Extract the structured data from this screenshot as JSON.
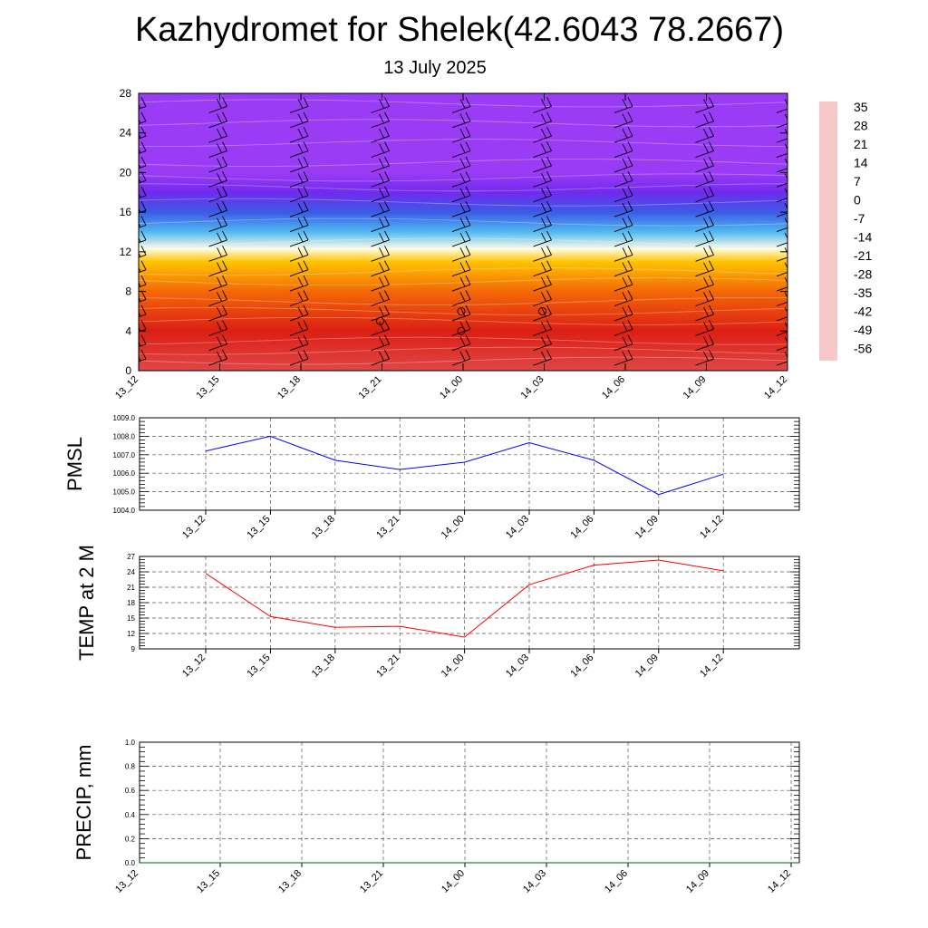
{
  "header": {
    "title": "Kazhydromet for Shelek(42.6043 78.2667)",
    "date": "13 July 2025"
  },
  "colors": {
    "pmsl_line": "#0000ff",
    "temp_line": "#ff0000",
    "precip_line": "#006400",
    "axis": "#000000",
    "grid": "#555555"
  },
  "chart_data": [
    {
      "type": "heatmap",
      "id": "upper-air-cross-section",
      "title": "",
      "xlabel": "",
      "ylabel": "",
      "ylim": [
        0,
        28
      ],
      "yticks": [
        0,
        4,
        8,
        12,
        16,
        20,
        24,
        28
      ],
      "x_tick_labels": [
        "13_12",
        "13_15",
        "13_18",
        "13_21",
        "14_00",
        "14_03",
        "14_06",
        "14_09",
        "14_12"
      ],
      "level_temperature": [
        {
          "level": 0,
          "value": 30
        },
        {
          "level": 4,
          "value": 24
        },
        {
          "level": 8,
          "value": 12
        },
        {
          "level": 11,
          "value": 0
        },
        {
          "level": 12.3,
          "value": -12
        },
        {
          "level": 14,
          "value": -26
        },
        {
          "level": 16,
          "value": -36
        },
        {
          "level": 18,
          "value": -48
        },
        {
          "level": 20,
          "value": -60
        },
        {
          "level": 22,
          "value": -56
        },
        {
          "level": 24,
          "value": -56
        },
        {
          "level": 28,
          "value": -56
        }
      ],
      "wind_barb_levels": [
        1,
        2.5,
        4,
        5.5,
        7,
        8.5,
        10,
        11.5,
        13,
        14.5,
        16,
        17.5,
        19,
        20.5,
        22,
        23.5,
        25,
        26.5
      ],
      "calm_markers": [
        {
          "time_index": 3,
          "level": 5
        },
        {
          "time_index": 4,
          "level": 6
        },
        {
          "time_index": 4,
          "level": 4
        },
        {
          "time_index": 5,
          "level": 6
        }
      ],
      "colorbar": {
        "labels": [
          "35",
          "28",
          "21",
          "14",
          "7",
          "0",
          "-7",
          "-14",
          "-21",
          "-28",
          "-35",
          "-42",
          "-49",
          "-56"
        ],
        "stops": [
          "#f6c8c8",
          "#d61414",
          "#e02814",
          "#f05a0a",
          "#ff8c00",
          "#ffc400",
          "#fff6a0",
          "#ffffff",
          "#9ee0f5",
          "#32aaf0",
          "#3c64e6",
          "#3c1edc",
          "#7a2cf2",
          "#9a3cf6"
        ]
      }
    },
    {
      "type": "line",
      "id": "pmsl",
      "title": "",
      "ylabel": "PMSL",
      "ylim": [
        1004.0,
        1009.0
      ],
      "yticks": [
        "1004.0",
        "1005.0",
        "1006.0",
        "1007.0",
        "1008.0",
        "1009.0"
      ],
      "x_tick_labels": [
        "13_12",
        "13_15",
        "13_18",
        "13_21",
        "14_00",
        "14_03",
        "14_06",
        "14_09",
        "14_12"
      ],
      "series": [
        {
          "values": [
            1007.2,
            1008.0,
            1006.7,
            1006.2,
            1006.6,
            1007.65,
            1006.7,
            1004.85,
            1005.95
          ]
        }
      ]
    },
    {
      "type": "line",
      "id": "temp",
      "title": "",
      "ylabel": "TEMP at 2 M",
      "ylim": [
        9,
        27
      ],
      "yticks": [
        "9",
        "12",
        "15",
        "18",
        "21",
        "24",
        "27"
      ],
      "x_tick_labels": [
        "13_12",
        "13_15",
        "13_18",
        "13_21",
        "14_00",
        "14_03",
        "14_06",
        "14_09",
        "14_12"
      ],
      "series": [
        {
          "values": [
            23.7,
            15.3,
            13.2,
            13.4,
            11.3,
            21.5,
            25.3,
            26.3,
            24.2
          ]
        }
      ]
    },
    {
      "type": "line",
      "id": "precip",
      "title": "",
      "ylabel": "PRECIP, mm",
      "ylim": [
        0.0,
        1.0
      ],
      "yticks": [
        "0.0",
        "0.2",
        "0.4",
        "0.6",
        "0.8",
        "1.0"
      ],
      "x_tick_labels": [
        "13_12",
        "13_15",
        "13_18",
        "13_21",
        "14_00",
        "14_03",
        "14_06",
        "14_09",
        "14_12"
      ],
      "series": [
        {
          "values": [
            0,
            0,
            0,
            0,
            0,
            0,
            0,
            0,
            0
          ]
        }
      ]
    }
  ]
}
